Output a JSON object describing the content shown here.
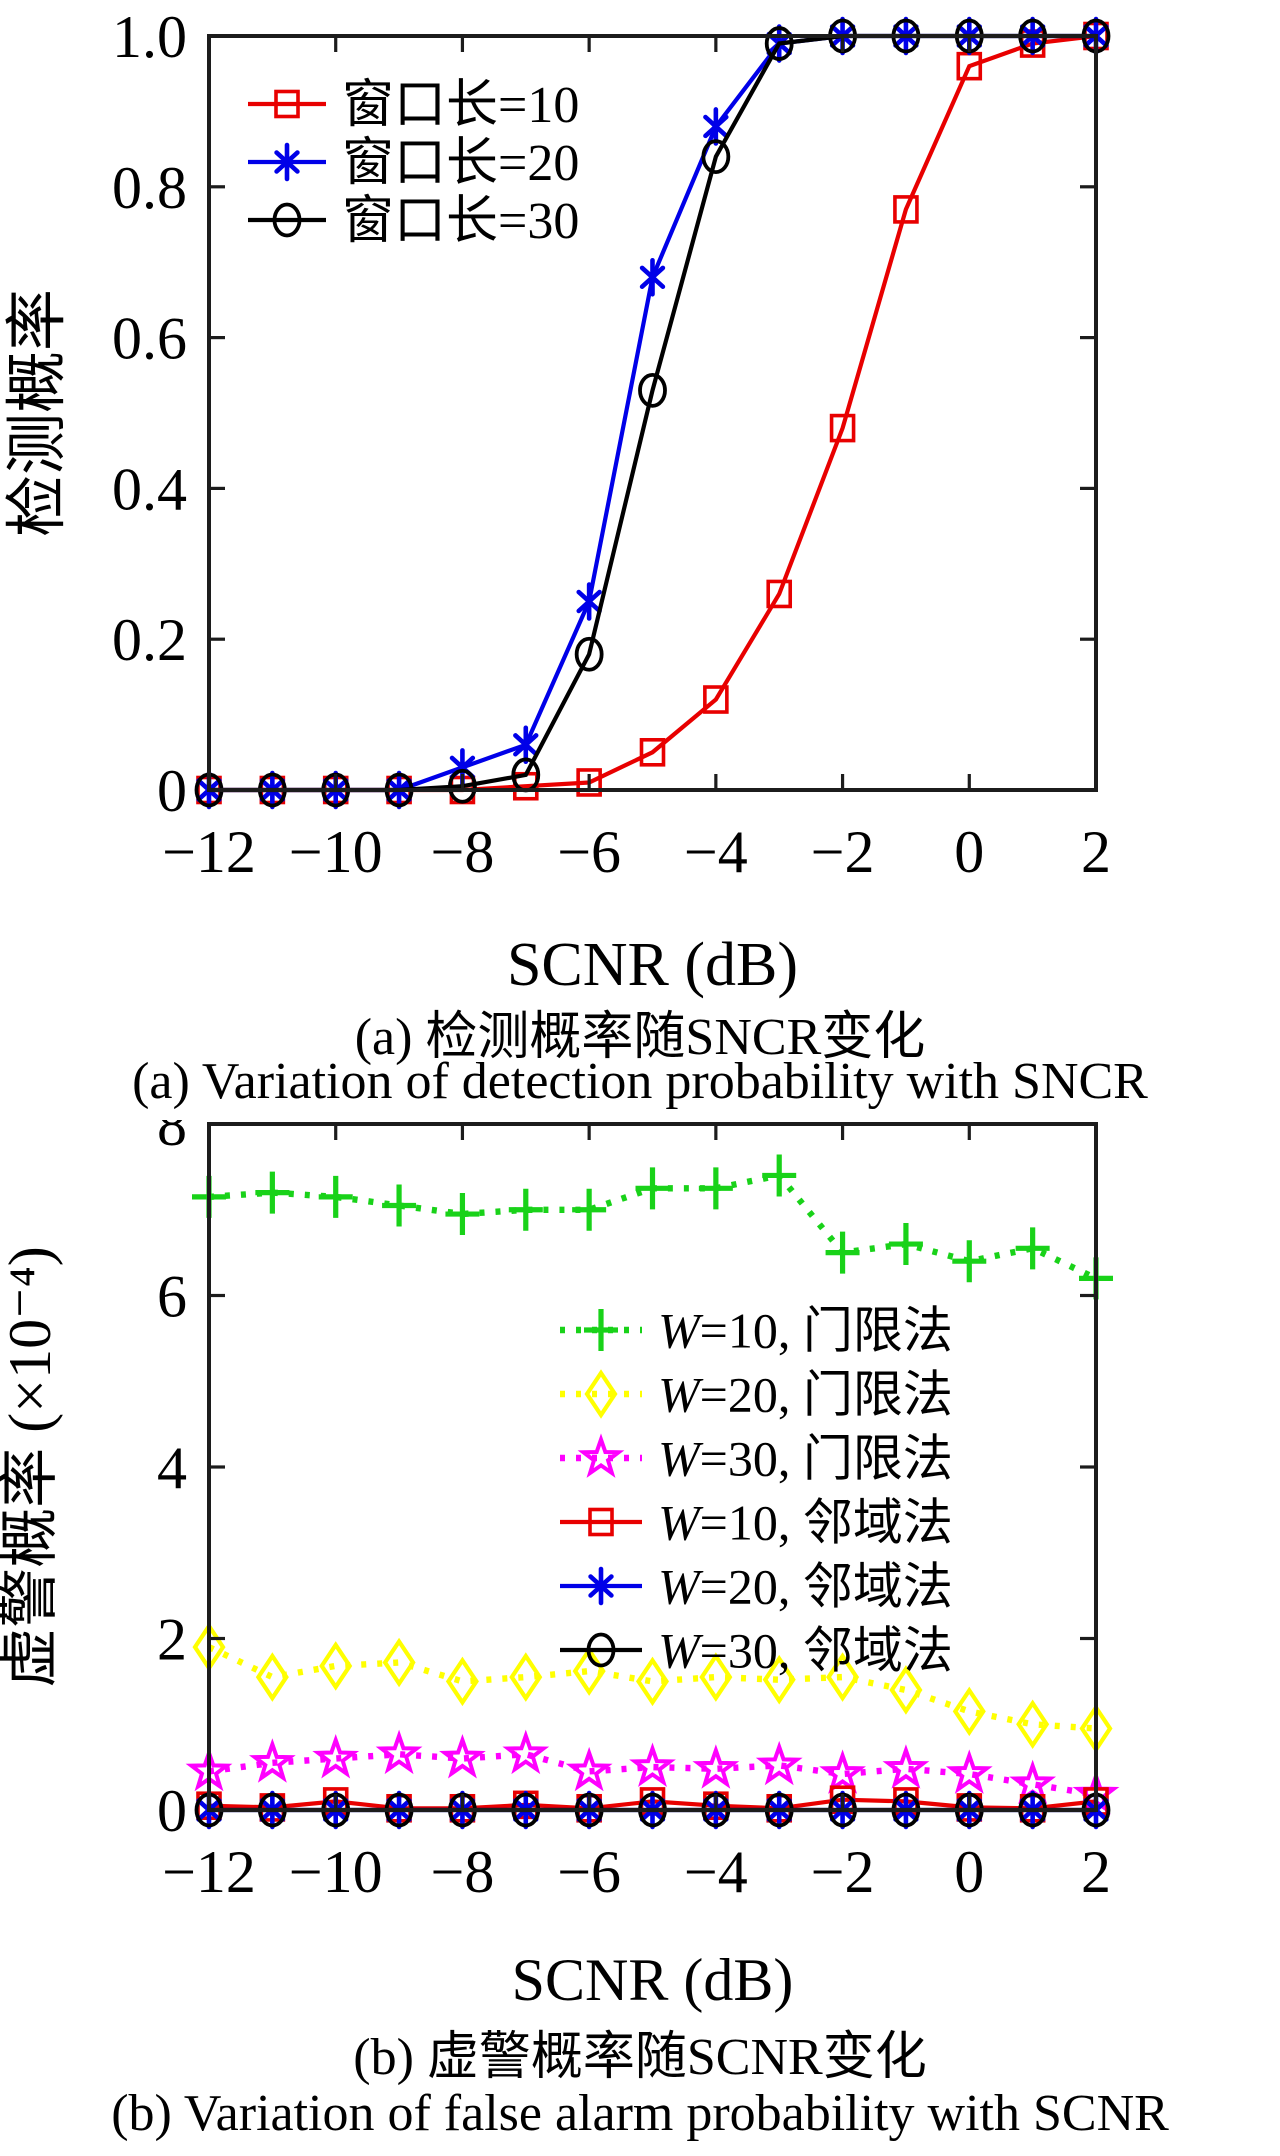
{
  "captions": {
    "a_zh": "(a) 检测概率随SNCR变化",
    "a_en": "(a) Variation of detection probability with SNCR",
    "b_zh": "(b) 虚警概率随SCNR变化",
    "b_en": "(b) Variation of false alarm probability with SCNR"
  },
  "chart_data": [
    {
      "id": "a",
      "type": "line",
      "xlabel": "SCNR (dB)",
      "ylabel": "检测概率",
      "x": [
        -12,
        -11,
        -10,
        -9,
        -8,
        -7,
        -6,
        -5,
        -4,
        -3,
        -2,
        -1,
        0,
        1,
        2
      ],
      "xlim": [
        -12,
        2
      ],
      "ylim": [
        0,
        1
      ],
      "xticks": [
        -12,
        -10,
        -8,
        -6,
        -4,
        -2,
        0,
        2
      ],
      "xtick_labels": [
        "−12",
        "−10",
        "−8",
        "−6",
        "−4",
        "−2",
        "0",
        "2"
      ],
      "yticks": [
        0,
        0.2,
        0.4,
        0.6,
        0.8,
        1.0
      ],
      "ytick_labels": [
        "0",
        "0.2",
        "0.4",
        "0.6",
        "0.8",
        "1.0"
      ],
      "grid": false,
      "legend_position": "upper-left-inside",
      "legend_italic_first": false,
      "series": [
        {
          "name": "窗口长=10",
          "color": "#e80000",
          "marker": "square",
          "line": "solid",
          "values": [
            0,
            0,
            0,
            0,
            0,
            0.005,
            0.01,
            0.05,
            0.12,
            0.26,
            0.48,
            0.77,
            0.96,
            0.99,
            1.0
          ]
        },
        {
          "name": "窗口长=20",
          "color": "#0000e8",
          "marker": "asterisk",
          "line": "solid",
          "values": [
            0,
            0,
            0,
            0,
            0.03,
            0.06,
            0.25,
            0.68,
            0.88,
            0.99,
            1.0,
            1.0,
            1.0,
            1.0,
            1.0
          ]
        },
        {
          "name": "窗口长=30",
          "color": "#000000",
          "marker": "circle",
          "line": "solid",
          "values": [
            0,
            0,
            0,
            0,
            0.005,
            0.02,
            0.18,
            0.53,
            0.84,
            0.99,
            1.0,
            1.0,
            1.0,
            1.0,
            1.0
          ]
        }
      ]
    },
    {
      "id": "b",
      "type": "line",
      "xlabel": "SCNR (dB)",
      "ylabel": "虚警概率 (×10⁻⁴)",
      "x": [
        -12,
        -11,
        -10,
        -9,
        -8,
        -7,
        -6,
        -5,
        -4,
        -3,
        -2,
        -1,
        0,
        1,
        2
      ],
      "xlim": [
        -12,
        2
      ],
      "ylim": [
        0,
        8
      ],
      "xticks": [
        -12,
        -10,
        -8,
        -6,
        -4,
        -2,
        0,
        2
      ],
      "xtick_labels": [
        "−12",
        "−10",
        "−8",
        "−6",
        "−4",
        "−2",
        "0",
        "2"
      ],
      "yticks": [
        0,
        2,
        4,
        6,
        8
      ],
      "ytick_labels": [
        "0",
        "2",
        "4",
        "6",
        "8"
      ],
      "grid": false,
      "legend_position": "middle-right-inside",
      "legend_italic_first": true,
      "series": [
        {
          "name": "W=10, 门限法",
          "color": "#19d219",
          "marker": "plus",
          "line": "dotted",
          "values": [
            7.15,
            7.2,
            7.15,
            7.05,
            6.95,
            7.0,
            7.0,
            7.25,
            7.25,
            7.4,
            6.5,
            6.6,
            6.4,
            6.55,
            6.2
          ]
        },
        {
          "name": "W=20, 门限法",
          "color": "#ffff00",
          "marker": "diamond",
          "line": "dotted",
          "values": [
            1.9,
            1.55,
            1.68,
            1.72,
            1.5,
            1.55,
            1.62,
            1.5,
            1.55,
            1.52,
            1.55,
            1.4,
            1.15,
            1.0,
            0.95
          ]
        },
        {
          "name": "W=30, 门限法",
          "color": "#ff00ff",
          "marker": "star5",
          "line": "dotted",
          "values": [
            0.45,
            0.55,
            0.6,
            0.65,
            0.6,
            0.65,
            0.45,
            0.5,
            0.48,
            0.52,
            0.42,
            0.48,
            0.42,
            0.3,
            0.18
          ]
        },
        {
          "name": "W=10, 邻域法",
          "color": "#e80000",
          "marker": "square",
          "line": "solid",
          "values": [
            0.05,
            0.03,
            0.1,
            0.02,
            0.02,
            0.06,
            0.02,
            0.1,
            0.05,
            0.02,
            0.12,
            0.1,
            0.03,
            0.02,
            0.1
          ]
        },
        {
          "name": "W=20, 邻域法",
          "color": "#0000e8",
          "marker": "asterisk",
          "line": "solid",
          "values": [
            0,
            0,
            0,
            0,
            0,
            0,
            0,
            0,
            0,
            0,
            0,
            0,
            0,
            0,
            0
          ]
        },
        {
          "name": "W=30, 邻域法",
          "color": "#000000",
          "marker": "circle",
          "line": "solid",
          "values": [
            0,
            0,
            0,
            0,
            0,
            0,
            0,
            0,
            0,
            0,
            0,
            0,
            0,
            0,
            0
          ]
        }
      ]
    }
  ]
}
